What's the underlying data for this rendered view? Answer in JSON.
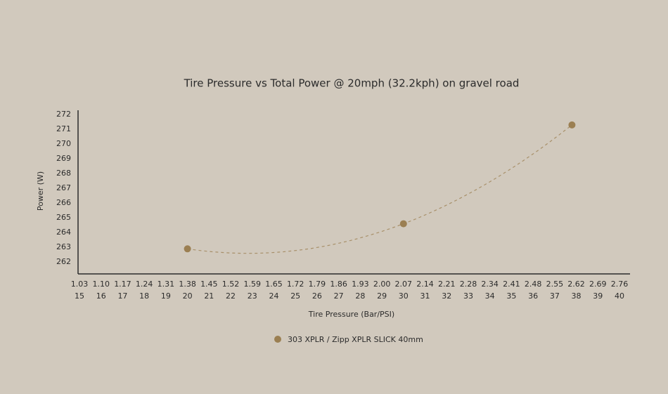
{
  "chart_data": {
    "type": "scatter",
    "title": "Tire Pressure vs Total Power @ 20mph (32.2kph) on gravel road",
    "x_label": "Tire Pressure (Bar/PSI)",
    "y_label": "Power (W)",
    "series": [
      {
        "name": "303 XPLR / Zipp XPLR SLICK 40mm",
        "color": "#9b7f52",
        "x": [
          20,
          30,
          37.8
        ],
        "values": [
          262.9,
          264.6,
          271.3
        ]
      }
    ],
    "trend_line": {
      "style": "dashed",
      "color": "#a8906a"
    },
    "xlim": [
      15,
      40
    ],
    "xticks": [
      15,
      16,
      17,
      18,
      19,
      20,
      21,
      22,
      23,
      24,
      25,
      26,
      27,
      28,
      29,
      30,
      31,
      32,
      33,
      34,
      35,
      36,
      37,
      38,
      39,
      40
    ],
    "xticks_bar": [
      {
        "value": 15,
        "label": "1.03"
      },
      {
        "value": 16,
        "label": "1.10"
      },
      {
        "value": 17,
        "label": "1.17"
      },
      {
        "value": 18,
        "label": "1.24"
      },
      {
        "value": 19,
        "label": "1.31"
      },
      {
        "value": 20,
        "label": "1.38"
      },
      {
        "value": 21,
        "label": "1.45"
      },
      {
        "value": 22,
        "label": "1.52"
      },
      {
        "value": 23,
        "label": "1.59"
      },
      {
        "value": 24,
        "label": "1.65"
      },
      {
        "value": 25,
        "label": "1.72"
      },
      {
        "value": 26,
        "label": "1.79"
      },
      {
        "value": 27,
        "label": "1.86"
      },
      {
        "value": 28,
        "label": "1.93"
      },
      {
        "value": 29,
        "label": "2.00"
      },
      {
        "value": 30,
        "label": "2.07"
      },
      {
        "value": 31,
        "label": "2.14"
      },
      {
        "value": 32,
        "label": "2.21"
      },
      {
        "value": 33,
        "label": "2.28"
      },
      {
        "value": 34,
        "label": "2.34"
      },
      {
        "value": 35,
        "label": "2.41"
      },
      {
        "value": 36,
        "label": "2.48"
      },
      {
        "value": 37,
        "label": "2.55"
      },
      {
        "value": 38,
        "label": "2.62"
      },
      {
        "value": 39,
        "label": "2.69"
      },
      {
        "value": 40,
        "label": "2.76"
      }
    ],
    "ylim": [
      261.2,
      272.15
    ],
    "yticks": [
      262,
      263,
      264,
      265,
      266,
      267,
      268,
      269,
      270,
      271,
      272
    ],
    "grid": false
  }
}
